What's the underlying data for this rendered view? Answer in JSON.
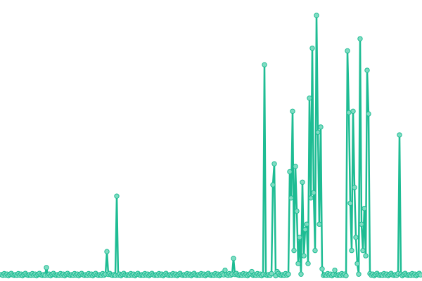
{
  "chart_data": {
    "type": "line",
    "color": "#1ebc93",
    "marker_color": "#7fdcc2",
    "ylim": [
      0,
      100
    ],
    "grid": false,
    "values": [
      0.8,
      0.5,
      1.2,
      0.6,
      1,
      0.4,
      0.9,
      1.3,
      0.7,
      0.5,
      0.8,
      0.5,
      1.2,
      0.6,
      1,
      0.4,
      0.9,
      1.3,
      0.7,
      0.5,
      0.8,
      0.5,
      1.2,
      0.6,
      1,
      0.4,
      0.9,
      1.3,
      0.7,
      0.5,
      0.8,
      0.5,
      3.5,
      0.6,
      1,
      0.4,
      0.9,
      1.3,
      0.7,
      0.5,
      0.8,
      0.5,
      1.2,
      0.6,
      1,
      0.4,
      0.9,
      1.3,
      0.7,
      0.5,
      0.8,
      0.5,
      1.2,
      0.6,
      1,
      0.4,
      0.9,
      1.3,
      0.7,
      0.5,
      0.8,
      0.5,
      1.2,
      0.6,
      1,
      0.4,
      0.9,
      1.3,
      0.7,
      0.5,
      0.8,
      0.5,
      1.2,
      0.6,
      1,
      9.6,
      0.9,
      1.3,
      0.7,
      0.5,
      0.8,
      0.5,
      30.7,
      0.6,
      1,
      0.4,
      0.9,
      1.3,
      0.7,
      0.5,
      0.8,
      0.5,
      1.2,
      0.6,
      1,
      0.4,
      0.9,
      1.3,
      0.7,
      0.5,
      0.8,
      0.5,
      1.2,
      0.6,
      1,
      0.4,
      0.9,
      1.3,
      0.7,
      0.5,
      0.8,
      0.5,
      1.2,
      0.6,
      1,
      0.4,
      0.9,
      1.3,
      0.7,
      0.5,
      0.8,
      0.5,
      1.2,
      0.6,
      1,
      0.4,
      0.9,
      1.3,
      0.7,
      0.5,
      0.8,
      0.5,
      1.2,
      0.6,
      1,
      0.4,
      0.9,
      1.3,
      0.7,
      0.5,
      0.8,
      0.5,
      1.2,
      0.6,
      1,
      0.4,
      0.9,
      1.3,
      0.7,
      0.5,
      0.8,
      0.5,
      1.2,
      0.6,
      1,
      0.4,
      0.9,
      1.3,
      0.7,
      2.5,
      0.8,
      0.5,
      1.2,
      0.6,
      1,
      7,
      0.9,
      1.3,
      0.7,
      0.5,
      0.8,
      0.5,
      1.2,
      0.6,
      1,
      0.4,
      0.9,
      1.3,
      2,
      0.5,
      0.8,
      0.5,
      1.2,
      0.6,
      1,
      0.4,
      0.9,
      80.7,
      0.7,
      0.5,
      0.8,
      0.5,
      1.2,
      35,
      43,
      0.4,
      2,
      1.3,
      0.7,
      0.5,
      0.8,
      0.5,
      1.2,
      0.6,
      1,
      40,
      30,
      63,
      10,
      42,
      25,
      5,
      15,
      1,
      36,
      8,
      18,
      20,
      5,
      68,
      30,
      87,
      32,
      10,
      99.5,
      55,
      20,
      57,
      3,
      0.5,
      0.8,
      0.5,
      1.2,
      0.6,
      1,
      0.4,
      0.9,
      2.5,
      0.7,
      0.5,
      0.8,
      0.5,
      1.2,
      0.6,
      1,
      0.4,
      86,
      62.5,
      28,
      10,
      63,
      34,
      15,
      5,
      1,
      90.6,
      20,
      10,
      26,
      8,
      78.6,
      62,
      1.2,
      0.6,
      1,
      0.4,
      0.9,
      1.3,
      0.7,
      0.5,
      0.8,
      0.5,
      1.2,
      0.6,
      1,
      0.4,
      0.9,
      1.3,
      0.7,
      0.5,
      0.8,
      0.5,
      1.2,
      54,
      1,
      0.4,
      0.9,
      1.3,
      0.7,
      0.5,
      0.8,
      0.5,
      1.2,
      0.6,
      1,
      0.4,
      0.9,
      1.3,
      0.7
    ]
  }
}
